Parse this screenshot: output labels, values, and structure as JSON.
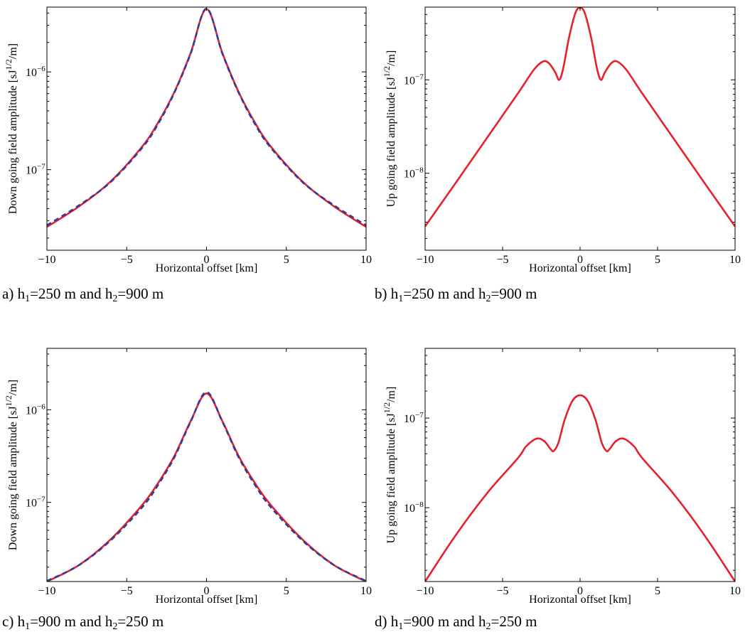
{
  "chart_data": [
    {
      "type": "line",
      "panel": "a",
      "caption": {
        "prefix": "a) h",
        "s1": "1",
        "mid": "=250 m and h",
        "s2": "2",
        "suffix": "=900 m"
      },
      "xlabel": "Horizontal offset [km]",
      "ylabel": "Down going field amplitude [sJ",
      "ylabel_sup": "1/2",
      "ylabel_tail": "/m]",
      "xlim": [
        -10,
        10
      ],
      "ylim": [
        1.5e-08,
        4.6e-06
      ],
      "yscale": "log",
      "xticks": [
        -10,
        -5,
        0,
        5,
        10
      ],
      "xtick_labels": [
        "−10",
        "−5",
        "0",
        "5",
        "10"
      ],
      "ytick_exponents": [
        -7,
        -6
      ],
      "ytick_base": "10",
      "ytick_labels": [
        "−7",
        "−6"
      ],
      "grid": false,
      "series": [
        {
          "style": "solid",
          "color": "#e8202a",
          "x": [
            -10,
            -8,
            -6,
            -4,
            -3,
            -2,
            -1,
            0,
            1,
            2,
            3,
            4,
            6,
            8,
            10
          ],
          "y": [
            2.6e-08,
            4.2e-08,
            7.6e-08,
            1.75e-07,
            3.1e-07,
            6.3e-07,
            1.55e-06,
            4.4e-06,
            1.55e-06,
            6.3e-07,
            3.1e-07,
            1.75e-07,
            7.6e-08,
            4.2e-08,
            2.6e-08
          ]
        },
        {
          "style": "dashed",
          "color": "#2e3d9c",
          "x": [
            -10,
            -8,
            -6,
            -4,
            -3,
            -2,
            -1,
            0,
            1,
            2,
            3,
            4,
            6,
            8,
            10
          ],
          "y": [
            2.7e-08,
            4.3e-08,
            7.5e-08,
            1.7e-07,
            3e-07,
            6.2e-07,
            1.53e-06,
            4.45e-06,
            1.53e-06,
            6.2e-07,
            3e-07,
            1.7e-07,
            7.5e-08,
            4.3e-08,
            2.7e-08
          ]
        }
      ]
    },
    {
      "type": "line",
      "panel": "b",
      "caption": {
        "prefix": "b) h",
        "s1": "1",
        "mid": "=250 m and h",
        "s2": "2",
        "suffix": "=900 m"
      },
      "xlabel": "Horizontal offset [km]",
      "ylabel": "Up going field amplitude [sJ",
      "ylabel_sup": "1/2",
      "ylabel_tail": "/m]",
      "xlim": [
        -10,
        10
      ],
      "ylim": [
        1.5e-09,
        6e-07
      ],
      "yscale": "log",
      "xticks": [
        -10,
        -5,
        0,
        5,
        10
      ],
      "xtick_labels": [
        "−10",
        "−5",
        "0",
        "5",
        "10"
      ],
      "ytick_exponents": [
        -8,
        -7
      ],
      "ytick_base": "10",
      "ytick_labels": [
        "−8",
        "−7"
      ],
      "grid": false,
      "series": [
        {
          "style": "solid",
          "color": "#e8202a",
          "x": [
            -10,
            -8,
            -6,
            -4,
            -3,
            -2.4,
            -2,
            -1.6,
            -1.35,
            -1.1,
            -0.7,
            -0.3,
            0,
            0.3,
            0.7,
            1.1,
            1.35,
            1.6,
            2,
            2.4,
            3,
            4,
            6,
            8,
            10
          ],
          "y": [
            2.7e-09,
            8e-09,
            2.4e-08,
            7.2e-08,
            1.27e-07,
            1.57e-07,
            1.5e-07,
            1.2e-07,
            1e-07,
            1.3e-07,
            2.9e-07,
            5.2e-07,
            5.9e-07,
            5.2e-07,
            2.9e-07,
            1.3e-07,
            1e-07,
            1.2e-07,
            1.5e-07,
            1.57e-07,
            1.27e-07,
            7.2e-08,
            2.4e-08,
            8e-09,
            2.7e-09
          ]
        }
      ]
    },
    {
      "type": "line",
      "panel": "c",
      "caption": {
        "prefix": "c) h",
        "s1": "1",
        "mid": "=900 m and h",
        "s2": "2",
        "suffix": "=250 m"
      },
      "xlabel": "Horizontal offset [km]",
      "ylabel": "Down going field amplitude [sJ",
      "ylabel_sup": "1/2",
      "ylabel_tail": "/m]",
      "xlim": [
        -10,
        10
      ],
      "ylim": [
        1.4e-08,
        4.6e-06
      ],
      "yscale": "log",
      "xticks": [
        -10,
        -5,
        0,
        5,
        10
      ],
      "xtick_labels": [
        "−10",
        "−5",
        "0",
        "5",
        "10"
      ],
      "ytick_exponents": [
        -7,
        -6
      ],
      "ytick_base": "10",
      "ytick_labels": [
        "−7",
        "−6"
      ],
      "grid": false,
      "series": [
        {
          "style": "solid",
          "color": "#e8202a",
          "x": [
            -10,
            -8,
            -6,
            -4,
            -3,
            -2,
            -1,
            0,
            1,
            2,
            3,
            4,
            6,
            8,
            10
          ],
          "y": [
            1.4e-08,
            2.1e-08,
            4e-08,
            9.5e-08,
            1.65e-07,
            3.2e-07,
            7.5e-07,
            1.5e-06,
            7.5e-07,
            3.2e-07,
            1.65e-07,
            9.5e-08,
            4e-08,
            2.1e-08,
            1.4e-08
          ]
        },
        {
          "style": "dashed",
          "color": "#2e3d9c",
          "x": [
            -10,
            -8,
            -6,
            -4,
            -3,
            -2,
            -1,
            0,
            1,
            2,
            3,
            4,
            6,
            8,
            10
          ],
          "y": [
            1.42e-08,
            2.1e-08,
            3.9e-08,
            9e-08,
            1.58e-07,
            3.1e-07,
            7.4e-07,
            1.55e-06,
            7.4e-07,
            3.1e-07,
            1.58e-07,
            9e-08,
            3.9e-08,
            2.1e-08,
            1.42e-08
          ]
        }
      ]
    },
    {
      "type": "line",
      "panel": "d",
      "caption": {
        "prefix": "d) h",
        "s1": "1",
        "mid": "=900 m and h",
        "s2": "2",
        "suffix": "=250 m"
      },
      "xlabel": "Horizontal offset [km]",
      "ylabel": "Up going field amplitude [sJ",
      "ylabel_sup": "1/2",
      "ylabel_tail": "/m]",
      "xlim": [
        -10,
        10
      ],
      "ylim": [
        1.5e-09,
        6e-07
      ],
      "yscale": "log",
      "xticks": [
        -10,
        -5,
        0,
        5,
        10
      ],
      "xtick_labels": [
        "−10",
        "−5",
        "0",
        "5",
        "10"
      ],
      "ytick_exponents": [
        -8,
        -7
      ],
      "ytick_base": "10",
      "ytick_labels": [
        "−8",
        "−7"
      ],
      "grid": false,
      "series": [
        {
          "style": "solid",
          "color": "#e8202a",
          "x": [
            -10,
            -8,
            -6,
            -4,
            -3.5,
            -2.8,
            -2.3,
            -1.9,
            -1.7,
            -1.4,
            -1.0,
            -0.5,
            0,
            0.5,
            1.0,
            1.4,
            1.7,
            1.9,
            2.3,
            2.8,
            3.5,
            4,
            6,
            8,
            10
          ],
          "y": [
            1.5e-09,
            5e-09,
            1.45e-08,
            3.6e-08,
            4.8e-08,
            5.9e-08,
            5.5e-08,
            4.5e-08,
            4.3e-08,
            5.3e-08,
            9.5e-08,
            1.55e-07,
            1.8e-07,
            1.55e-07,
            9.5e-08,
            5.3e-08,
            4.3e-08,
            4.5e-08,
            5.5e-08,
            5.9e-08,
            4.8e-08,
            3.6e-08,
            1.45e-08,
            5e-09,
            1.5e-09
          ]
        }
      ]
    }
  ]
}
